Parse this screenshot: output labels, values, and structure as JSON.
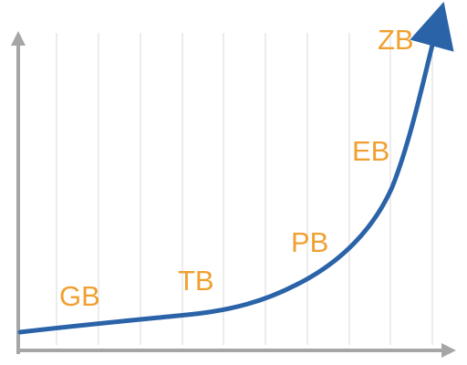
{
  "chart_data": {
    "type": "line",
    "title": "",
    "xlabel": "",
    "ylabel": "",
    "categories": [
      "GB",
      "TB",
      "PB",
      "EB",
      "ZB"
    ],
    "grid": "vertical",
    "legend": "none",
    "colors": {
      "curve": "#2b63a8",
      "labels": "#f0a030",
      "axis": "#a6a6a6",
      "grid": "#d9d9d9"
    },
    "annotations": [
      {
        "text": "GB"
      },
      {
        "text": "TB"
      },
      {
        "text": "PB"
      },
      {
        "text": "EB"
      },
      {
        "text": "ZB"
      }
    ]
  }
}
